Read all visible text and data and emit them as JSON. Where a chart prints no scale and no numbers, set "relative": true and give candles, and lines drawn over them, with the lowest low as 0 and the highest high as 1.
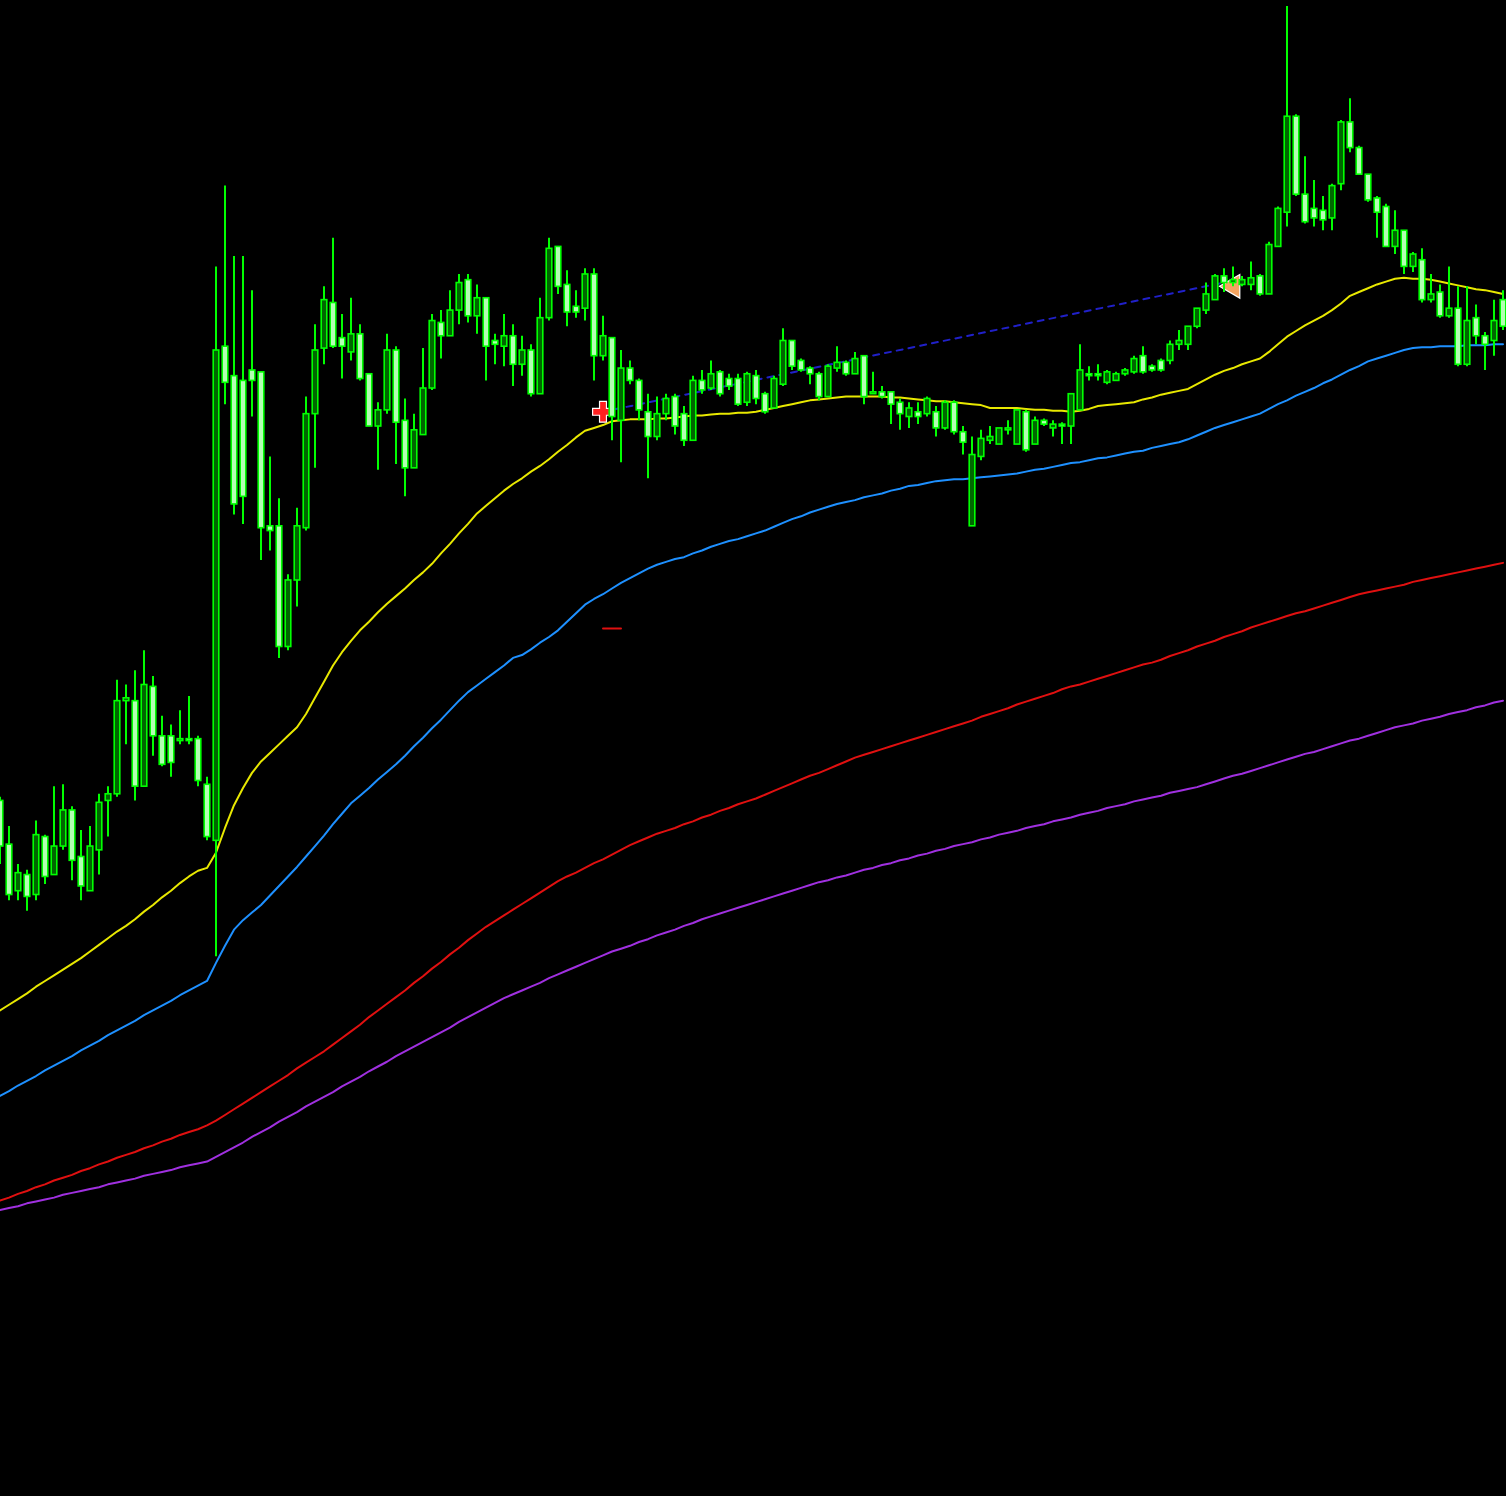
{
  "chart_data": {
    "type": "candlestick",
    "relative": true,
    "color": "#00ff00",
    "categories": [
      null,
      null,
      null,
      null,
      null,
      null,
      null,
      null,
      null,
      null,
      null,
      null,
      null,
      null,
      null,
      null,
      null,
      null,
      null,
      null,
      null,
      null,
      null,
      null,
      null,
      null,
      null,
      null,
      null,
      null,
      null,
      null,
      null,
      null,
      null,
      null,
      null,
      null,
      null,
      null,
      null,
      null,
      null,
      null,
      null,
      null,
      null,
      null,
      null,
      null,
      null,
      null,
      null,
      null,
      null,
      null,
      null,
      null,
      null,
      null,
      null,
      null,
      null,
      null,
      null,
      null,
      null,
      null,
      null,
      null,
      null,
      null,
      null,
      null,
      null,
      null,
      null,
      null,
      null,
      null,
      null,
      null,
      null,
      null,
      null,
      null,
      null,
      null,
      null,
      null,
      null,
      null,
      null,
      null,
      null,
      null,
      null,
      null,
      null,
      null,
      null,
      null,
      null,
      null,
      null,
      null,
      null,
      null,
      null,
      null,
      null,
      null,
      null,
      null,
      null,
      null,
      null,
      null,
      null,
      null,
      null,
      null,
      null,
      null,
      null,
      null,
      null,
      null,
      null,
      null,
      null,
      null,
      null,
      null,
      null,
      null,
      null,
      null,
      null,
      null,
      null,
      null,
      null,
      null,
      null,
      null,
      null,
      null,
      null,
      null,
      null,
      null,
      null,
      null,
      null,
      null,
      null,
      null,
      null,
      null,
      null,
      null,
      null,
      null,
      null,
      null,
      null,
      null
    ],
    "ohlc": [
      [
        0.164,
        0.168,
        0.097,
        0.116
      ],
      [
        0.118,
        0.137,
        0.059,
        0.065
      ],
      [
        0.069,
        0.097,
        0.059,
        0.088
      ],
      [
        0.086,
        0.091,
        0.048,
        0.063
      ],
      [
        0.065,
        0.143,
        0.059,
        0.128
      ],
      [
        0.126,
        0.128,
        0.076,
        0.084
      ],
      [
        0.086,
        0.179,
        0.086,
        0.116
      ],
      [
        0.116,
        0.181,
        0.112,
        0.154
      ],
      [
        0.154,
        0.158,
        0.08,
        0.101
      ],
      [
        0.105,
        0.133,
        0.059,
        0.074
      ],
      [
        0.069,
        0.137,
        0.069,
        0.116
      ],
      [
        0.112,
        0.171,
        0.086,
        0.162
      ],
      [
        0.164,
        0.179,
        0.126,
        0.171
      ],
      [
        0.171,
        0.291,
        0.168,
        0.269
      ],
      [
        0.269,
        0.286,
        0.223,
        0.272
      ],
      [
        0.269,
        0.301,
        0.164,
        0.179
      ],
      [
        0.179,
        0.322,
        0.179,
        0.286
      ],
      [
        0.284,
        0.295,
        0.211,
        0.232
      ],
      [
        0.232,
        0.253,
        0.2,
        0.202
      ],
      [
        0.232,
        0.244,
        0.189,
        0.204
      ],
      [
        0.227,
        0.259,
        0.223,
        0.229
      ],
      [
        0.229,
        0.274,
        0.223,
        0.227
      ],
      [
        0.229,
        0.232,
        0.179,
        0.185
      ],
      [
        0.181,
        0.189,
        0.122,
        0.126
      ],
      [
        0.122,
        0.726,
        0,
        0.638
      ],
      [
        0.642,
        0.811,
        0.581,
        0.604
      ],
      [
        0.611,
        0.737,
        0.465,
        0.476
      ],
      [
        0.606,
        0.737,
        0.455,
        0.484
      ],
      [
        0.617,
        0.701,
        0.568,
        0.606
      ],
      [
        0.615,
        0.615,
        0.417,
        0.451
      ],
      [
        0.453,
        0.526,
        0.427,
        0.448
      ],
      [
        0.453,
        0.482,
        0.314,
        0.326
      ],
      [
        0.326,
        0.402,
        0.322,
        0.396
      ],
      [
        0.396,
        0.472,
        0.368,
        0.453
      ],
      [
        0.451,
        0.589,
        0.448,
        0.571
      ],
      [
        0.571,
        0.665,
        0.514,
        0.638
      ],
      [
        0.64,
        0.705,
        0.623,
        0.691
      ],
      [
        0.688,
        0.756,
        0.64,
        0.642
      ],
      [
        0.651,
        0.676,
        0.608,
        0.642
      ],
      [
        0.636,
        0.693,
        0.627,
        0.655
      ],
      [
        0.655,
        0.665,
        0.606,
        0.608
      ],
      [
        0.613,
        0.613,
        0.558,
        0.558
      ],
      [
        0.558,
        0.583,
        0.512,
        0.575
      ],
      [
        0.575,
        0.655,
        0.571,
        0.638
      ],
      [
        0.638,
        0.642,
        0.518,
        0.562
      ],
      [
        0.564,
        0.587,
        0.484,
        0.514
      ],
      [
        0.514,
        0.571,
        0.514,
        0.554
      ],
      [
        0.549,
        0.64,
        0.549,
        0.598
      ],
      [
        0.598,
        0.676,
        0.596,
        0.669
      ],
      [
        0.667,
        0.68,
        0.629,
        0.653
      ],
      [
        0.653,
        0.701,
        0.653,
        0.68
      ],
      [
        0.68,
        0.718,
        0.665,
        0.709
      ],
      [
        0.712,
        0.718,
        0.667,
        0.674
      ],
      [
        0.674,
        0.707,
        0.655,
        0.693
      ],
      [
        0.693,
        0.693,
        0.606,
        0.642
      ],
      [
        0.648,
        0.655,
        0.623,
        0.644
      ],
      [
        0.642,
        0.676,
        0.621,
        0.653
      ],
      [
        0.653,
        0.665,
        0.6,
        0.623
      ],
      [
        0.623,
        0.653,
        0.611,
        0.638
      ],
      [
        0.638,
        0.644,
        0.589,
        0.592
      ],
      [
        0.592,
        0.693,
        0.592,
        0.672
      ],
      [
        0.672,
        0.756,
        0.669,
        0.745
      ],
      [
        0.747,
        0.747,
        0.697,
        0.705
      ],
      [
        0.707,
        0.722,
        0.663,
        0.678
      ],
      [
        0.684,
        0.701,
        0.672,
        0.678
      ],
      [
        0.682,
        0.724,
        0.669,
        0.718
      ],
      [
        0.718,
        0.724,
        0.606,
        0.632
      ],
      [
        0.632,
        0.674,
        0.627,
        0.653
      ],
      [
        0.651,
        0.651,
        0.543,
        0.568
      ],
      [
        0.564,
        0.638,
        0.52,
        0.619
      ],
      [
        0.619,
        0.627,
        0.602,
        0.606
      ],
      [
        0.606,
        0.608,
        0.564,
        0.575
      ],
      [
        0.573,
        0.592,
        0.503,
        0.547
      ],
      [
        0.547,
        0.589,
        0.543,
        0.571
      ],
      [
        0.571,
        0.592,
        0.564,
        0.587
      ],
      [
        0.589,
        0.592,
        0.549,
        0.558
      ],
      [
        0.571,
        0.579,
        0.537,
        0.543
      ],
      [
        0.543,
        0.611,
        0.543,
        0.606
      ],
      [
        0.606,
        0.617,
        0.592,
        0.596
      ],
      [
        0.598,
        0.627,
        0.596,
        0.613
      ],
      [
        0.615,
        0.617,
        0.589,
        0.592
      ],
      [
        0.608,
        0.613,
        0.596,
        0.6
      ],
      [
        0.608,
        0.613,
        0.579,
        0.581
      ],
      [
        0.583,
        0.615,
        0.579,
        0.613
      ],
      [
        0.611,
        0.617,
        0.581,
        0.587
      ],
      [
        0.592,
        0.594,
        0.571,
        0.573
      ],
      [
        0.577,
        0.611,
        0.577,
        0.608
      ],
      [
        0.602,
        0.661,
        0.6,
        0.648
      ],
      [
        0.648,
        0.648,
        0.617,
        0.621
      ],
      [
        0.627,
        0.629,
        0.615,
        0.617
      ],
      [
        0.619,
        0.621,
        0.602,
        0.613
      ],
      [
        0.613,
        0.615,
        0.585,
        0.589
      ],
      [
        0.589,
        0.623,
        0.589,
        0.621
      ],
      [
        0.619,
        0.642,
        0.615,
        0.625
      ],
      [
        0.625,
        0.627,
        0.611,
        0.613
      ],
      [
        0.613,
        0.636,
        0.613,
        0.629
      ],
      [
        0.632,
        0.632,
        0.581,
        0.589
      ],
      [
        0.592,
        0.615,
        0.592,
        0.594
      ],
      [
        0.594,
        0.6,
        0.587,
        0.589
      ],
      [
        0.594,
        0.594,
        0.56,
        0.581
      ],
      [
        0.583,
        0.587,
        0.554,
        0.571
      ],
      [
        0.568,
        0.583,
        0.556,
        0.577
      ],
      [
        0.573,
        0.583,
        0.56,
        0.568
      ],
      [
        0.571,
        0.589,
        0.568,
        0.587
      ],
      [
        0.573,
        0.579,
        0.547,
        0.556
      ],
      [
        0.556,
        0.585,
        0.554,
        0.583
      ],
      [
        0.583,
        0.585,
        0.549,
        0.552
      ],
      [
        0.552,
        0.558,
        0.528,
        0.541
      ],
      [
        0.453,
        0.547,
        0.453,
        0.528
      ],
      [
        0.526,
        0.554,
        0.522,
        0.545
      ],
      [
        0.543,
        0.558,
        0.539,
        0.547
      ],
      [
        0.539,
        0.556,
        0.539,
        0.556
      ],
      [
        0.554,
        0.564,
        0.549,
        0.556
      ],
      [
        0.539,
        0.575,
        0.539,
        0.575
      ],
      [
        0.573,
        0.575,
        0.531,
        0.533
      ],
      [
        0.539,
        0.568,
        0.539,
        0.564
      ],
      [
        0.564,
        0.566,
        0.558,
        0.56
      ],
      [
        0.556,
        0.564,
        0.547,
        0.56
      ],
      [
        0.56,
        0.562,
        0.539,
        0.558
      ],
      [
        0.558,
        0.592,
        0.539,
        0.592
      ],
      [
        0.575,
        0.644,
        0.575,
        0.617
      ],
      [
        0.613,
        0.621,
        0.606,
        0.611
      ],
      [
        0.613,
        0.623,
        0.606,
        0.611
      ],
      [
        0.604,
        0.617,
        0.602,
        0.615
      ],
      [
        0.606,
        0.615,
        0.606,
        0.613
      ],
      [
        0.613,
        0.619,
        0.611,
        0.617
      ],
      [
        0.615,
        0.632,
        0.613,
        0.629
      ],
      [
        0.632,
        0.642,
        0.613,
        0.615
      ],
      [
        0.621,
        0.623,
        0.615,
        0.617
      ],
      [
        0.627,
        0.629,
        0.615,
        0.617
      ],
      [
        0.627,
        0.648,
        0.623,
        0.644
      ],
      [
        0.644,
        0.659,
        0.638,
        0.648
      ],
      [
        0.644,
        0.663,
        0.638,
        0.663
      ],
      [
        0.663,
        0.682,
        0.661,
        0.682
      ],
      [
        0.68,
        0.709,
        0.676,
        0.697
      ],
      [
        0.691,
        0.718,
        0.691,
        0.716
      ],
      [
        0.716,
        0.724,
        0.699,
        0.709
      ],
      [
        0.709,
        0.726,
        0.705,
        0.712
      ],
      [
        0.707,
        0.716,
        0.705,
        0.712
      ],
      [
        0.707,
        0.731,
        0.701,
        0.714
      ],
      [
        0.716,
        0.718,
        0.695,
        0.697
      ],
      [
        0.697,
        0.752,
        0.697,
        0.749
      ],
      [
        0.747,
        0.789,
        0.747,
        0.787
      ],
      [
        0.783,
        1,
        0.768,
        0.884
      ],
      [
        0.884,
        0.886,
        0.8,
        0.802
      ],
      [
        0.802,
        0.842,
        0.771,
        0.773
      ],
      [
        0.787,
        0.817,
        0.768,
        0.777
      ],
      [
        0.785,
        0.8,
        0.764,
        0.775
      ],
      [
        0.777,
        0.813,
        0.764,
        0.811
      ],
      [
        0.813,
        0.88,
        0.806,
        0.878
      ],
      [
        0.878,
        0.903,
        0.846,
        0.851
      ],
      [
        0.851,
        0.853,
        0.823,
        0.823
      ],
      [
        0.823,
        0.823,
        0.794,
        0.796
      ],
      [
        0.798,
        0.8,
        0.756,
        0.783
      ],
      [
        0.789,
        0.792,
        0.747,
        0.747
      ],
      [
        0.747,
        0.785,
        0.739,
        0.764
      ],
      [
        0.764,
        0.764,
        0.718,
        0.726
      ],
      [
        0.726,
        0.741,
        0.72,
        0.739
      ],
      [
        0.733,
        0.745,
        0.688,
        0.691
      ],
      [
        0.691,
        0.718,
        0.688,
        0.697
      ],
      [
        0.699,
        0.707,
        0.672,
        0.674
      ],
      [
        0.674,
        0.726,
        0.672,
        0.682
      ],
      [
        0.682,
        0.705,
        0.621,
        0.623
      ],
      [
        0.623,
        0.705,
        0.621,
        0.669
      ],
      [
        0.672,
        0.686,
        0.644,
        0.653
      ],
      [
        0.653,
        0.657,
        0.617,
        0.644
      ],
      [
        0.648,
        0.691,
        0.632,
        0.669
      ],
      [
        0.691,
        0.701,
        0.659,
        0.663
      ]
    ],
    "series": [
      {
        "type": "line",
        "color": "#e8e800",
        "values": [
          -0.057,
          -0.051,
          -0.045,
          -0.039,
          -0.032,
          -0.026,
          -0.02,
          -0.014,
          -0.008,
          -0.002,
          0.005,
          0.012,
          0.019,
          0.026,
          0.032,
          0.039,
          0.047,
          0.054,
          0.062,
          0.069,
          0.077,
          0.084,
          0.09,
          0.093,
          0.109,
          0.135,
          0.159,
          0.177,
          0.193,
          0.205,
          0.214,
          0.223,
          0.232,
          0.241,
          0.255,
          0.272,
          0.289,
          0.306,
          0.32,
          0.332,
          0.343,
          0.352,
          0.362,
          0.371,
          0.379,
          0.387,
          0.396,
          0.404,
          0.413,
          0.424,
          0.434,
          0.445,
          0.455,
          0.466,
          0.474,
          0.482,
          0.49,
          0.497,
          0.503,
          0.51,
          0.516,
          0.523,
          0.531,
          0.538,
          0.546,
          0.553,
          0.556,
          0.559,
          0.563,
          0.564,
          0.565,
          0.565,
          0.565,
          0.566,
          0.566,
          0.567,
          0.568,
          0.569,
          0.569,
          0.57,
          0.571,
          0.571,
          0.572,
          0.572,
          0.573,
          0.575,
          0.577,
          0.579,
          0.581,
          0.583,
          0.585,
          0.586,
          0.587,
          0.588,
          0.589,
          0.589,
          0.589,
          0.589,
          0.589,
          0.588,
          0.588,
          0.587,
          0.586,
          0.585,
          0.584,
          0.584,
          0.583,
          0.582,
          0.581,
          0.58,
          0.577,
          0.577,
          0.577,
          0.577,
          0.576,
          0.575,
          0.575,
          0.574,
          0.574,
          0.573,
          0.574,
          0.576,
          0.579,
          0.58,
          0.581,
          0.582,
          0.583,
          0.586,
          0.588,
          0.591,
          0.593,
          0.595,
          0.597,
          0.602,
          0.607,
          0.612,
          0.616,
          0.619,
          0.623,
          0.626,
          0.629,
          0.636,
          0.644,
          0.652,
          0.658,
          0.664,
          0.669,
          0.674,
          0.68,
          0.687,
          0.695,
          0.699,
          0.703,
          0.707,
          0.71,
          0.713,
          0.714,
          0.713,
          0.713,
          0.712,
          0.71,
          0.708,
          0.706,
          0.704,
          0.702,
          0.701,
          0.699,
          0.697
        ]
      },
      {
        "type": "line",
        "color": "#1e90ff",
        "values": [
          -0.147,
          -0.142,
          -0.136,
          -0.131,
          -0.126,
          -0.12,
          -0.115,
          -0.11,
          -0.105,
          -0.099,
          -0.094,
          -0.089,
          -0.083,
          -0.078,
          -0.073,
          -0.068,
          -0.062,
          -0.057,
          -0.052,
          -0.047,
          -0.041,
          -0.036,
          -0.031,
          -0.026,
          -0.007,
          0.011,
          0.028,
          0.038,
          0.046,
          0.054,
          0.064,
          0.074,
          0.084,
          0.094,
          0.105,
          0.116,
          0.127,
          0.139,
          0.15,
          0.161,
          0.169,
          0.177,
          0.186,
          0.194,
          0.202,
          0.211,
          0.221,
          0.23,
          0.24,
          0.249,
          0.259,
          0.269,
          0.278,
          0.285,
          0.292,
          0.299,
          0.306,
          0.314,
          0.317,
          0.323,
          0.33,
          0.336,
          0.343,
          0.352,
          0.361,
          0.37,
          0.376,
          0.381,
          0.387,
          0.393,
          0.398,
          0.403,
          0.408,
          0.412,
          0.415,
          0.418,
          0.42,
          0.424,
          0.427,
          0.431,
          0.434,
          0.437,
          0.439,
          0.442,
          0.445,
          0.448,
          0.452,
          0.456,
          0.46,
          0.463,
          0.467,
          0.47,
          0.473,
          0.476,
          0.478,
          0.48,
          0.483,
          0.485,
          0.487,
          0.49,
          0.492,
          0.495,
          0.496,
          0.498,
          0.5,
          0.501,
          0.502,
          0.502,
          0.503,
          0.504,
          0.505,
          0.506,
          0.507,
          0.508,
          0.51,
          0.512,
          0.513,
          0.515,
          0.517,
          0.519,
          0.52,
          0.522,
          0.524,
          0.525,
          0.527,
          0.529,
          0.531,
          0.532,
          0.535,
          0.537,
          0.539,
          0.541,
          0.544,
          0.548,
          0.552,
          0.556,
          0.559,
          0.562,
          0.565,
          0.568,
          0.571,
          0.576,
          0.581,
          0.585,
          0.59,
          0.594,
          0.598,
          0.603,
          0.607,
          0.612,
          0.617,
          0.621,
          0.626,
          0.629,
          0.632,
          0.635,
          0.638,
          0.64,
          0.641,
          0.641,
          0.642,
          0.642,
          0.642,
          0.643,
          0.643,
          0.643,
          0.644,
          0.644
        ]
      },
      {
        "type": "line",
        "color": "#e01010",
        "values": [
          -0.257,
          -0.254,
          -0.25,
          -0.247,
          -0.243,
          -0.24,
          -0.236,
          -0.233,
          -0.23,
          -0.226,
          -0.223,
          -0.219,
          -0.216,
          -0.212,
          -0.209,
          -0.206,
          -0.202,
          -0.199,
          -0.195,
          -0.192,
          -0.188,
          -0.185,
          -0.182,
          -0.178,
          -0.173,
          -0.167,
          -0.161,
          -0.155,
          -0.149,
          -0.143,
          -0.137,
          -0.131,
          -0.125,
          -0.118,
          -0.112,
          -0.106,
          -0.1,
          -0.093,
          -0.086,
          -0.079,
          -0.072,
          -0.064,
          -0.057,
          -0.05,
          -0.043,
          -0.036,
          -0.028,
          -0.021,
          -0.013,
          -0.006,
          0.002,
          0.009,
          0.017,
          0.024,
          0.031,
          0.037,
          0.043,
          0.049,
          0.055,
          0.061,
          0.067,
          0.073,
          0.079,
          0.084,
          0.088,
          0.093,
          0.098,
          0.102,
          0.107,
          0.112,
          0.117,
          0.121,
          0.125,
          0.129,
          0.132,
          0.135,
          0.139,
          0.142,
          0.146,
          0.149,
          0.153,
          0.156,
          0.16,
          0.163,
          0.166,
          0.17,
          0.174,
          0.178,
          0.182,
          0.186,
          0.19,
          0.193,
          0.197,
          0.201,
          0.205,
          0.209,
          0.212,
          0.215,
          0.218,
          0.221,
          0.224,
          0.227,
          0.23,
          0.233,
          0.236,
          0.239,
          0.242,
          0.245,
          0.248,
          0.252,
          0.255,
          0.258,
          0.261,
          0.265,
          0.268,
          0.271,
          0.274,
          0.277,
          0.281,
          0.284,
          0.286,
          0.289,
          0.292,
          0.295,
          0.298,
          0.301,
          0.304,
          0.307,
          0.309,
          0.312,
          0.316,
          0.319,
          0.322,
          0.326,
          0.329,
          0.332,
          0.336,
          0.339,
          0.342,
          0.346,
          0.349,
          0.352,
          0.355,
          0.358,
          0.361,
          0.363,
          0.366,
          0.369,
          0.372,
          0.375,
          0.378,
          0.381,
          0.383,
          0.385,
          0.387,
          0.389,
          0.391,
          0.394,
          0.396,
          0.398,
          0.4,
          0.402,
          0.404,
          0.406,
          0.408,
          0.41,
          0.412,
          0.414
        ]
      },
      {
        "type": "line",
        "color": "#a030e0",
        "values": [
          -0.267,
          -0.265,
          -0.263,
          -0.26,
          -0.258,
          -0.256,
          -0.254,
          -0.251,
          -0.249,
          -0.247,
          -0.245,
          -0.243,
          -0.24,
          -0.238,
          -0.236,
          -0.234,
          -0.231,
          -0.229,
          -0.227,
          -0.225,
          -0.222,
          -0.22,
          -0.218,
          -0.216,
          -0.211,
          -0.206,
          -0.201,
          -0.196,
          -0.19,
          -0.185,
          -0.18,
          -0.174,
          -0.169,
          -0.164,
          -0.158,
          -0.153,
          -0.148,
          -0.143,
          -0.137,
          -0.132,
          -0.127,
          -0.121,
          -0.116,
          -0.111,
          -0.105,
          -0.1,
          -0.095,
          -0.09,
          -0.085,
          -0.08,
          -0.075,
          -0.069,
          -0.064,
          -0.059,
          -0.054,
          -0.049,
          -0.044,
          -0.04,
          -0.036,
          -0.032,
          -0.028,
          -0.023,
          -0.019,
          -0.015,
          -0.011,
          -0.007,
          -0.003,
          0.001,
          0.005,
          0.008,
          0.011,
          0.015,
          0.018,
          0.022,
          0.025,
          0.028,
          0.032,
          0.035,
          0.039,
          0.042,
          0.045,
          0.048,
          0.051,
          0.054,
          0.057,
          0.06,
          0.063,
          0.066,
          0.069,
          0.072,
          0.075,
          0.078,
          0.08,
          0.083,
          0.085,
          0.088,
          0.091,
          0.093,
          0.096,
          0.098,
          0.101,
          0.103,
          0.106,
          0.108,
          0.111,
          0.113,
          0.116,
          0.118,
          0.12,
          0.123,
          0.125,
          0.128,
          0.13,
          0.132,
          0.135,
          0.137,
          0.139,
          0.142,
          0.144,
          0.146,
          0.149,
          0.151,
          0.153,
          0.156,
          0.158,
          0.16,
          0.163,
          0.165,
          0.167,
          0.169,
          0.172,
          0.174,
          0.176,
          0.178,
          0.181,
          0.184,
          0.187,
          0.19,
          0.192,
          0.195,
          0.198,
          0.201,
          0.204,
          0.207,
          0.21,
          0.213,
          0.215,
          0.218,
          0.221,
          0.224,
          0.227,
          0.229,
          0.232,
          0.235,
          0.238,
          0.241,
          0.243,
          0.245,
          0.248,
          0.25,
          0.252,
          0.255,
          0.257,
          0.259,
          0.262,
          0.264,
          0.267,
          0.269
        ]
      },
      {
        "type": "line",
        "color": "#2020c8",
        "line_style": "dashed",
        "values": [
          null,
          null,
          null,
          null,
          null,
          null,
          null,
          null,
          null,
          null,
          null,
          null,
          null,
          null,
          null,
          null,
          null,
          null,
          null,
          null,
          null,
          null,
          null,
          null,
          null,
          null,
          null,
          null,
          null,
          null,
          null,
          null,
          null,
          null,
          null,
          null,
          null,
          null,
          null,
          null,
          null,
          null,
          null,
          null,
          null,
          null,
          null,
          null,
          null,
          null,
          null,
          null,
          null,
          null,
          null,
          null,
          null,
          null,
          null,
          null,
          null,
          null,
          null,
          null,
          null,
          null,
          null,
          0.573,
          null,
          null,
          null,
          null,
          null,
          null,
          null,
          null,
          null,
          null,
          null,
          null,
          null,
          null,
          null,
          null,
          null,
          null,
          null,
          null,
          null,
          null,
          null,
          null,
          null,
          null,
          null,
          null,
          null,
          null,
          null,
          null,
          null,
          null,
          null,
          null,
          null,
          null,
          null,
          null,
          null,
          null,
          null,
          null,
          null,
          null,
          null,
          null,
          null,
          null,
          null,
          null,
          null,
          null,
          null,
          null,
          null,
          null,
          null,
          null,
          null,
          null,
          null,
          null,
          null,
          null,
          null,
          null,
          0.709,
          null,
          null,
          null,
          null,
          null,
          null,
          null,
          null,
          null,
          null,
          null,
          null,
          null,
          null,
          null,
          null,
          null,
          null,
          null,
          null,
          null,
          null,
          null,
          null,
          null,
          null,
          null,
          null,
          null,
          null,
          null
        ]
      },
      {
        "type": "line",
        "color": "#e01010",
        "values": [
          null,
          null,
          null,
          null,
          null,
          null,
          null,
          null,
          null,
          null,
          null,
          null,
          null,
          null,
          null,
          null,
          null,
          null,
          null,
          null,
          null,
          null,
          null,
          null,
          null,
          null,
          null,
          null,
          null,
          null,
          null,
          null,
          null,
          null,
          null,
          null,
          null,
          null,
          null,
          null,
          null,
          null,
          null,
          null,
          null,
          null,
          null,
          null,
          null,
          null,
          null,
          null,
          null,
          null,
          null,
          null,
          null,
          null,
          null,
          null,
          null,
          null,
          null,
          null,
          null,
          null,
          null,
          0.345,
          0.345,
          0.345,
          null,
          null,
          null,
          null,
          null,
          null,
          null,
          null,
          null,
          null,
          null,
          null,
          null,
          null,
          null,
          null,
          null,
          null,
          null,
          null,
          null,
          null,
          null,
          null,
          null,
          null,
          null,
          null,
          null,
          null,
          null,
          null,
          null,
          null,
          null,
          null,
          null,
          null,
          null,
          null,
          null,
          null,
          null,
          null,
          null,
          null,
          null,
          null,
          null,
          null,
          null,
          null,
          null,
          null,
          null,
          null,
          null,
          null,
          null,
          null,
          null,
          null,
          null,
          null,
          null,
          null,
          null,
          null,
          null,
          null,
          null,
          null,
          null,
          null,
          null,
          null,
          null,
          null,
          null,
          null,
          null,
          null,
          null,
          null,
          null,
          null,
          null,
          null,
          null,
          null,
          null,
          null,
          null,
          null,
          null,
          null,
          null,
          null
        ]
      },
      {
        "type": "scatter",
        "color": "#ff2020",
        "marker": "cross",
        "values": [
          null,
          null,
          null,
          null,
          null,
          null,
          null,
          null,
          null,
          null,
          null,
          null,
          null,
          null,
          null,
          null,
          null,
          null,
          null,
          null,
          null,
          null,
          null,
          null,
          null,
          null,
          null,
          null,
          null,
          null,
          null,
          null,
          null,
          null,
          null,
          null,
          null,
          null,
          null,
          null,
          null,
          null,
          null,
          null,
          null,
          null,
          null,
          null,
          null,
          null,
          null,
          null,
          null,
          null,
          null,
          null,
          null,
          null,
          null,
          null,
          null,
          null,
          null,
          null,
          null,
          null,
          null,
          0.573,
          null,
          null,
          null,
          null,
          null,
          null,
          null,
          null,
          null,
          null,
          null,
          null,
          null,
          null,
          null,
          null,
          null,
          null,
          null,
          null,
          null,
          null,
          null,
          null,
          null,
          null,
          null,
          null,
          null,
          null,
          null,
          null,
          null,
          null,
          null,
          null,
          null,
          null,
          null,
          null,
          null,
          null,
          null,
          null,
          null,
          null,
          null,
          null,
          null,
          null,
          null,
          null,
          null,
          null,
          null,
          null,
          null,
          null,
          null,
          null,
          null,
          null,
          null,
          null,
          null,
          null,
          null,
          null,
          null,
          null,
          null,
          null,
          null,
          null,
          null,
          null,
          null,
          null,
          null,
          null,
          null,
          null,
          null,
          null,
          null,
          null,
          null,
          null,
          null,
          null,
          null,
          null,
          null,
          null,
          null,
          null,
          null,
          null,
          null,
          null
        ]
      },
      {
        "type": "scatter",
        "color": "#f4a460",
        "marker": "triangle",
        "values": [
          null,
          null,
          null,
          null,
          null,
          null,
          null,
          null,
          null,
          null,
          null,
          null,
          null,
          null,
          null,
          null,
          null,
          null,
          null,
          null,
          null,
          null,
          null,
          null,
          null,
          null,
          null,
          null,
          null,
          null,
          null,
          null,
          null,
          null,
          null,
          null,
          null,
          null,
          null,
          null,
          null,
          null,
          null,
          null,
          null,
          null,
          null,
          null,
          null,
          null,
          null,
          null,
          null,
          null,
          null,
          null,
          null,
          null,
          null,
          null,
          null,
          null,
          null,
          null,
          null,
          null,
          null,
          null,
          null,
          null,
          null,
          null,
          null,
          null,
          null,
          null,
          null,
          null,
          null,
          null,
          null,
          null,
          null,
          null,
          null,
          null,
          null,
          null,
          null,
          null,
          null,
          null,
          null,
          null,
          null,
          null,
          null,
          null,
          null,
          null,
          null,
          null,
          null,
          null,
          null,
          null,
          null,
          null,
          null,
          null,
          null,
          null,
          null,
          null,
          null,
          null,
          null,
          null,
          null,
          null,
          null,
          null,
          null,
          null,
          null,
          null,
          null,
          null,
          null,
          null,
          null,
          null,
          null,
          null,
          null,
          null,
          null,
          0.705,
          null,
          null,
          null,
          null,
          null,
          null,
          null,
          null,
          null,
          null,
          null,
          null,
          null,
          null,
          null,
          null,
          null,
          null,
          null,
          null,
          null,
          null,
          null,
          null,
          null,
          null,
          null,
          null,
          null,
          null
        ]
      }
    ]
  }
}
